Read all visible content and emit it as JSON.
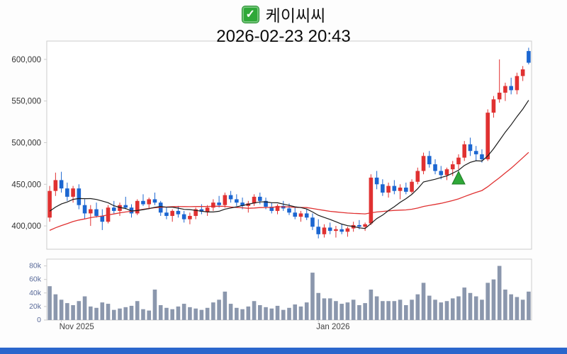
{
  "header": {
    "stock_name": "케이씨씨",
    "timestamp": "2026-02-23 20:43",
    "checkbox_checked": true,
    "check_glyph": "✓"
  },
  "colors": {
    "up": "#e03131",
    "down": "#1b66d1",
    "ma_short": "#1a1a1a",
    "ma_long": "#e03131",
    "volume_bar": "#8b97ad",
    "checkbox_green": "#2fa838",
    "checkbox_border": "#1f8c29",
    "marker_green": "#2fa838",
    "marker_border": "#1d7a24",
    "bottom_bar": "#2a66cc",
    "panel_border": "#cccccc",
    "panel_fill": "#ffffff",
    "price_label": "#333333",
    "volume_label": "#5a6b9a",
    "x_label": "#444444"
  },
  "chart_data": {
    "type": "candlestick",
    "title": "케이씨씨",
    "subtitle": "2026-02-23 20:43",
    "price_unit": "KRW (values stored ×1,000)",
    "volume_unit": "volume stored in thousands (k)",
    "legend_position": "none",
    "grid": false,
    "price_axis": {
      "min": 372,
      "max": 622,
      "ticks": [
        400,
        450,
        500,
        550,
        600
      ],
      "tick_labels": [
        "400,000",
        "450,000",
        "500,000",
        "550,000",
        "600,000"
      ]
    },
    "volume_axis": {
      "min": 0,
      "max": 90,
      "ticks": [
        0,
        20,
        40,
        60,
        80
      ],
      "tick_labels": [
        "0",
        "20k",
        "40k",
        "60k",
        "80k"
      ]
    },
    "x_ticks": [
      {
        "index": 2,
        "label": "Nov 2025"
      },
      {
        "index": 46,
        "label": "Jan 2026"
      }
    ],
    "ma": {
      "short_period": 10,
      "long_period": 30,
      "seed_closes": [
        360,
        362,
        364,
        367,
        369,
        371,
        373,
        375,
        378,
        380,
        382,
        384,
        386,
        389,
        391,
        393,
        395,
        397,
        400,
        402,
        404,
        406,
        408,
        411,
        413,
        415,
        417,
        419,
        422,
        424
      ]
    },
    "marker": {
      "index": 70,
      "price": 457,
      "shape": "triangle-up",
      "meaning": "buy-signal"
    },
    "candles": [
      [
        410,
        448,
        405,
        442,
        50
      ],
      [
        442,
        464,
        436,
        455,
        38
      ],
      [
        455,
        465,
        440,
        445,
        30
      ],
      [
        445,
        452,
        430,
        435,
        25
      ],
      [
        435,
        448,
        428,
        445,
        22
      ],
      [
        445,
        450,
        420,
        425,
        28
      ],
      [
        425,
        432,
        408,
        415,
        35
      ],
      [
        415,
        425,
        400,
        420,
        20
      ],
      [
        420,
        428,
        410,
        412,
        18
      ],
      [
        412,
        420,
        395,
        405,
        26
      ],
      [
        405,
        425,
        403,
        422,
        24
      ],
      [
        422,
        430,
        415,
        418,
        15
      ],
      [
        418,
        428,
        412,
        425,
        17
      ],
      [
        425,
        435,
        420,
        422,
        19
      ],
      [
        422,
        426,
        410,
        415,
        21
      ],
      [
        415,
        432,
        413,
        430,
        28
      ],
      [
        430,
        438,
        424,
        426,
        16
      ],
      [
        426,
        434,
        420,
        432,
        14
      ],
      [
        432,
        440,
        425,
        428,
        45
      ],
      [
        428,
        430,
        412,
        416,
        22
      ],
      [
        416,
        422,
        408,
        412,
        18
      ],
      [
        412,
        420,
        405,
        418,
        16
      ],
      [
        418,
        424,
        410,
        414,
        20
      ],
      [
        414,
        418,
        404,
        408,
        24
      ],
      [
        408,
        416,
        402,
        412,
        19
      ],
      [
        412,
        422,
        408,
        420,
        17
      ],
      [
        420,
        426,
        414,
        417,
        15
      ],
      [
        417,
        425,
        412,
        422,
        18
      ],
      [
        422,
        432,
        418,
        428,
        26
      ],
      [
        428,
        436,
        422,
        425,
        30
      ],
      [
        425,
        440,
        422,
        437,
        42
      ],
      [
        437,
        442,
        428,
        432,
        24
      ],
      [
        432,
        438,
        424,
        428,
        18
      ],
      [
        428,
        434,
        420,
        424,
        16
      ],
      [
        424,
        430,
        416,
        427,
        20
      ],
      [
        427,
        438,
        424,
        435,
        28
      ],
      [
        435,
        440,
        426,
        430,
        22
      ],
      [
        430,
        434,
        420,
        423,
        19
      ],
      [
        423,
        428,
        415,
        418,
        17
      ],
      [
        418,
        426,
        414,
        424,
        21
      ],
      [
        424,
        430,
        418,
        421,
        15
      ],
      [
        421,
        427,
        413,
        416,
        18
      ],
      [
        416,
        422,
        408,
        411,
        23
      ],
      [
        411,
        418,
        405,
        415,
        20
      ],
      [
        415,
        420,
        407,
        410,
        26
      ],
      [
        410,
        415,
        395,
        399,
        70
      ],
      [
        399,
        408,
        385,
        390,
        40
      ],
      [
        390,
        402,
        386,
        398,
        32
      ],
      [
        398,
        404,
        390,
        394,
        32
      ],
      [
        394,
        400,
        386,
        396,
        28
      ],
      [
        396,
        402,
        390,
        393,
        24
      ],
      [
        393,
        399,
        387,
        397,
        26
      ],
      [
        397,
        405,
        393,
        401,
        30
      ],
      [
        401,
        407,
        396,
        399,
        22
      ],
      [
        399,
        404,
        394,
        402,
        25
      ],
      [
        403,
        462,
        401,
        458,
        45
      ],
      [
        458,
        466,
        444,
        450,
        35
      ],
      [
        450,
        456,
        436,
        440,
        28
      ],
      [
        440,
        452,
        434,
        448,
        28
      ],
      [
        448,
        455,
        438,
        442,
        28
      ],
      [
        442,
        450,
        432,
        446,
        30
      ],
      [
        446,
        452,
        438,
        441,
        22
      ],
      [
        441,
        456,
        439,
        453,
        30
      ],
      [
        453,
        470,
        450,
        466,
        38
      ],
      [
        466,
        488,
        462,
        484,
        55
      ],
      [
        484,
        490,
        470,
        474,
        36
      ],
      [
        474,
        480,
        462,
        466,
        30
      ],
      [
        466,
        472,
        456,
        461,
        26
      ],
      [
        461,
        470,
        455,
        468,
        28
      ],
      [
        468,
        478,
        460,
        474,
        32
      ],
      [
        474,
        486,
        468,
        482,
        35
      ],
      [
        482,
        502,
        478,
        498,
        48
      ],
      [
        498,
        506,
        484,
        490,
        40
      ],
      [
        490,
        496,
        478,
        486,
        35
      ],
      [
        486,
        492,
        476,
        480,
        30
      ],
      [
        480,
        540,
        478,
        536,
        55
      ],
      [
        536,
        556,
        530,
        552,
        60
      ],
      [
        552,
        600,
        548,
        560,
        80
      ],
      [
        560,
        572,
        550,
        568,
        45
      ],
      [
        568,
        578,
        558,
        563,
        38
      ],
      [
        563,
        584,
        558,
        580,
        34
      ],
      [
        580,
        592,
        574,
        588,
        30
      ],
      [
        610,
        614,
        594,
        596,
        42
      ]
    ]
  }
}
